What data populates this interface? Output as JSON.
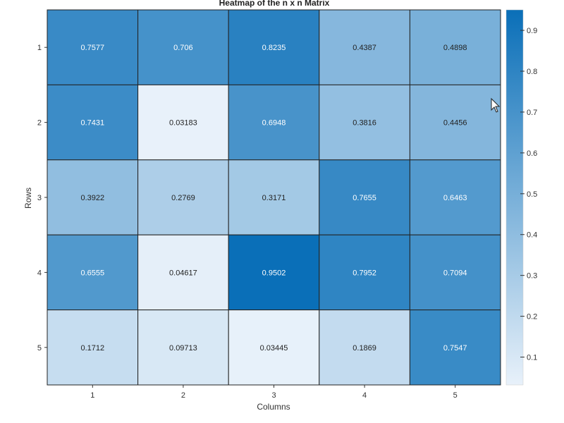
{
  "chart_data": {
    "type": "heatmap",
    "title": "Heatmap of the n x n Matrix",
    "xlabel": "Columns",
    "ylabel": "Rows",
    "x_categories": [
      "1",
      "2",
      "3",
      "4",
      "5"
    ],
    "y_categories": [
      "1",
      "2",
      "3",
      "4",
      "5"
    ],
    "cell_labels": [
      [
        "0.7577",
        "0.706",
        "0.8235",
        "0.4387",
        "0.4898"
      ],
      [
        "0.7431",
        "0.03183",
        "0.6948",
        "0.3816",
        "0.4456"
      ],
      [
        "0.3922",
        "0.2769",
        "0.3171",
        "0.7655",
        "0.6463"
      ],
      [
        "0.6555",
        "0.04617",
        "0.9502",
        "0.7952",
        "0.7094"
      ],
      [
        "0.1712",
        "0.09713",
        "0.03445",
        "0.1869",
        "0.7547"
      ]
    ],
    "colorbar": {
      "ticks": [
        "0.1",
        "0.2",
        "0.3",
        "0.4",
        "0.5",
        "0.6",
        "0.7",
        "0.8",
        "0.9"
      ],
      "range": [
        0.03183,
        0.9502
      ],
      "color_low": "#e8f1fa",
      "color_high": "#0a6fb8"
    },
    "grid": true
  }
}
